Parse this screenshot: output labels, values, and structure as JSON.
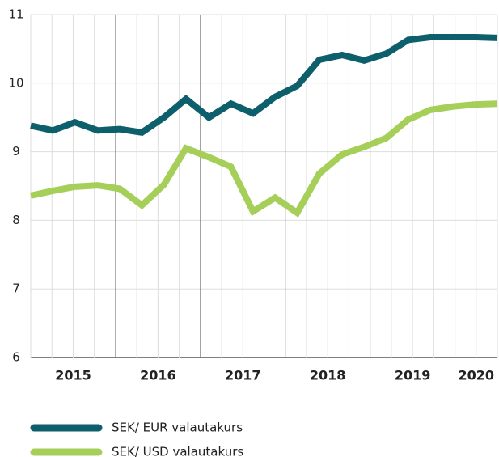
{
  "chart_data": {
    "type": "line",
    "x": [
      2015.0,
      2015.26,
      2015.52,
      2015.79,
      2016.05,
      2016.31,
      2016.57,
      2016.83,
      2017.1,
      2017.36,
      2017.62,
      2017.88,
      2018.14,
      2018.4,
      2018.67,
      2018.93,
      2019.19,
      2019.45,
      2019.71,
      2019.98,
      2020.24,
      2020.5
    ],
    "series": [
      {
        "name": "SEK/ EUR valautakurs",
        "color": "#0d5f6b",
        "values": [
          9.38,
          9.31,
          9.43,
          9.31,
          9.33,
          9.28,
          9.5,
          9.77,
          9.5,
          9.7,
          9.56,
          9.8,
          9.96,
          10.34,
          10.41,
          10.33,
          10.43,
          10.63,
          10.67,
          10.67,
          10.67,
          10.66
        ]
      },
      {
        "name": "SEK/ USD valautakurs",
        "color": "#a6cf5a",
        "values": [
          8.36,
          8.43,
          8.49,
          8.51,
          8.46,
          8.22,
          8.52,
          9.05,
          8.92,
          8.78,
          8.13,
          8.33,
          8.11,
          8.68,
          8.96,
          9.07,
          9.2,
          9.47,
          9.61,
          9.66,
          9.69,
          9.7
        ]
      }
    ],
    "xlim": [
      2015,
      2020.5
    ],
    "xticks": [
      {
        "value": 2015.5,
        "label": "2015"
      },
      {
        "value": 2016.5,
        "label": "2016"
      },
      {
        "value": 2017.5,
        "label": "2017"
      },
      {
        "value": 2018.5,
        "label": "2018"
      },
      {
        "value": 2019.5,
        "label": "2019"
      },
      {
        "value": 2020.25,
        "label": "2020"
      }
    ],
    "major_xgrid": [
      2016,
      2017,
      2018,
      2019,
      2020
    ],
    "minor_xgrid": [
      2015,
      2015.25,
      2015.5,
      2015.75,
      2016.25,
      2016.5,
      2016.75,
      2017.25,
      2017.5,
      2017.75,
      2018.25,
      2018.5,
      2018.75,
      2019.25,
      2019.5,
      2019.75,
      2020.25,
      2020.5
    ],
    "ylim": [
      6,
      11
    ],
    "yticks": [
      6,
      7,
      8,
      9,
      10,
      11
    ],
    "grid": true,
    "legend": "bottom"
  }
}
